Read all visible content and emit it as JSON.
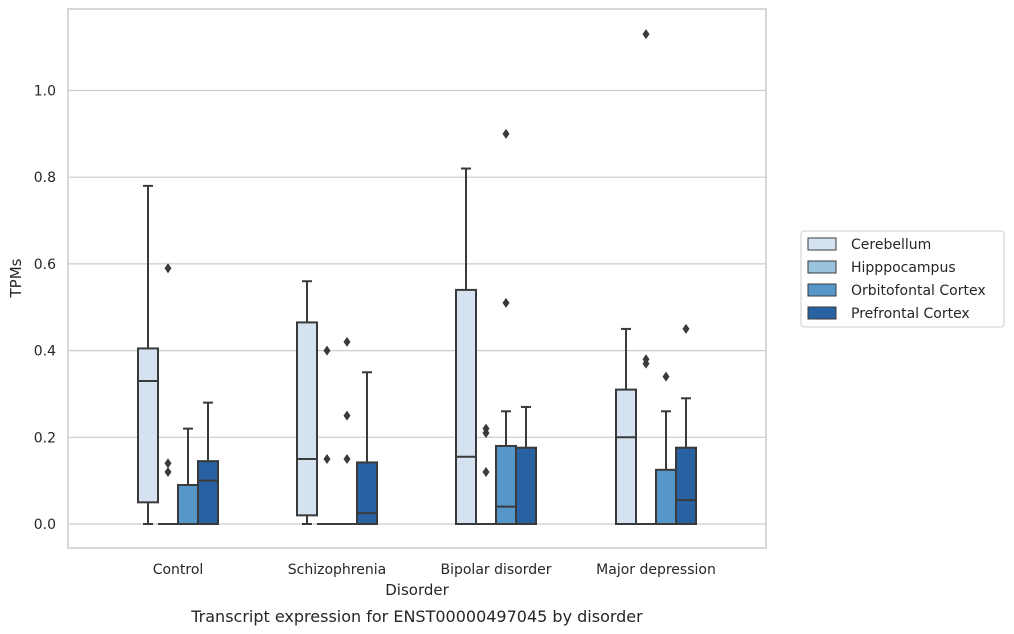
{
  "chart_data": {
    "type": "box",
    "xlabel": "Disorder",
    "ylabel": "TPMs",
    "caption": "Transcript expression for ENST00000497045 by disorder",
    "ylim": [
      -0.055,
      1.195
    ],
    "yticks": [
      "0.0",
      "0.2",
      "0.4",
      "0.6",
      "0.8",
      "1.0"
    ],
    "grid": "horizontal",
    "legend_position": "right",
    "categories": [
      "Control",
      "Schizophrenia",
      "Bipolar disorder",
      "Major depression"
    ],
    "series": [
      {
        "name": "Cerebellum",
        "color": "#d5e3f1",
        "boxes": [
          {
            "q1": 0.05,
            "median": 0.33,
            "q3": 0.405,
            "whisker_low": 0.0,
            "whisker_high": 0.78,
            "outliers": []
          },
          {
            "q1": 0.02,
            "median": 0.15,
            "q3": 0.465,
            "whisker_low": 0.0,
            "whisker_high": 0.56,
            "outliers": []
          },
          {
            "q1": 0.0,
            "median": 0.155,
            "q3": 0.54,
            "whisker_low": 0.0,
            "whisker_high": 0.82,
            "outliers": []
          },
          {
            "q1": 0.0,
            "median": 0.2,
            "q3": 0.31,
            "whisker_low": 0.0,
            "whisker_high": 0.45,
            "outliers": []
          }
        ]
      },
      {
        "name": "Hipppocampus",
        "color": "#9ac3de",
        "boxes": [
          {
            "q1": 0.0,
            "median": 0.0,
            "q3": 0.0,
            "whisker_low": 0.0,
            "whisker_high": 0.0,
            "outliers": [
              0.59,
              0.14,
              0.12
            ]
          },
          {
            "q1": 0.0,
            "median": 0.0,
            "q3": 0.0,
            "whisker_low": 0.0,
            "whisker_high": 0.0,
            "outliers": [
              0.4,
              0.15
            ]
          },
          {
            "q1": 0.0,
            "median": 0.0,
            "q3": 0.0,
            "whisker_low": 0.0,
            "whisker_high": 0.0,
            "outliers": [
              0.22,
              0.21,
              0.12
            ]
          },
          {
            "q1": 0.0,
            "median": 0.0,
            "q3": 0.0,
            "whisker_low": 0.0,
            "whisker_high": 0.0,
            "outliers": [
              1.13,
              0.38,
              0.37
            ]
          }
        ]
      },
      {
        "name": "Orbitofontal Cortex",
        "color": "#5597c8",
        "boxes": [
          {
            "q1": 0.0,
            "median": 0.0,
            "q3": 0.09,
            "whisker_low": 0.0,
            "whisker_high": 0.22,
            "outliers": []
          },
          {
            "q1": 0.0,
            "median": 0.0,
            "q3": 0.0,
            "whisker_low": 0.0,
            "whisker_high": 0.0,
            "outliers": [
              0.42,
              0.25,
              0.15
            ]
          },
          {
            "q1": 0.0,
            "median": 0.04,
            "q3": 0.18,
            "whisker_low": 0.0,
            "whisker_high": 0.26,
            "outliers": [
              0.9,
              0.51
            ]
          },
          {
            "q1": 0.0,
            "median": 0.0,
            "q3": 0.125,
            "whisker_low": 0.0,
            "whisker_high": 0.26,
            "outliers": [
              0.34
            ]
          }
        ]
      },
      {
        "name": "Prefrontal Cortex",
        "color": "#2862a2",
        "boxes": [
          {
            "q1": 0.0,
            "median": 0.1,
            "q3": 0.145,
            "whisker_low": 0.0,
            "whisker_high": 0.28,
            "outliers": []
          },
          {
            "q1": 0.0,
            "median": 0.025,
            "q3": 0.142,
            "whisker_low": 0.0,
            "whisker_high": 0.35,
            "outliers": []
          },
          {
            "q1": 0.0,
            "median": 0.0,
            "q3": 0.176,
            "whisker_low": 0.0,
            "whisker_high": 0.27,
            "outliers": []
          },
          {
            "q1": 0.0,
            "median": 0.055,
            "q3": 0.176,
            "whisker_low": 0.0,
            "whisker_high": 0.29,
            "outliers": [
              0.45
            ]
          }
        ]
      }
    ]
  }
}
